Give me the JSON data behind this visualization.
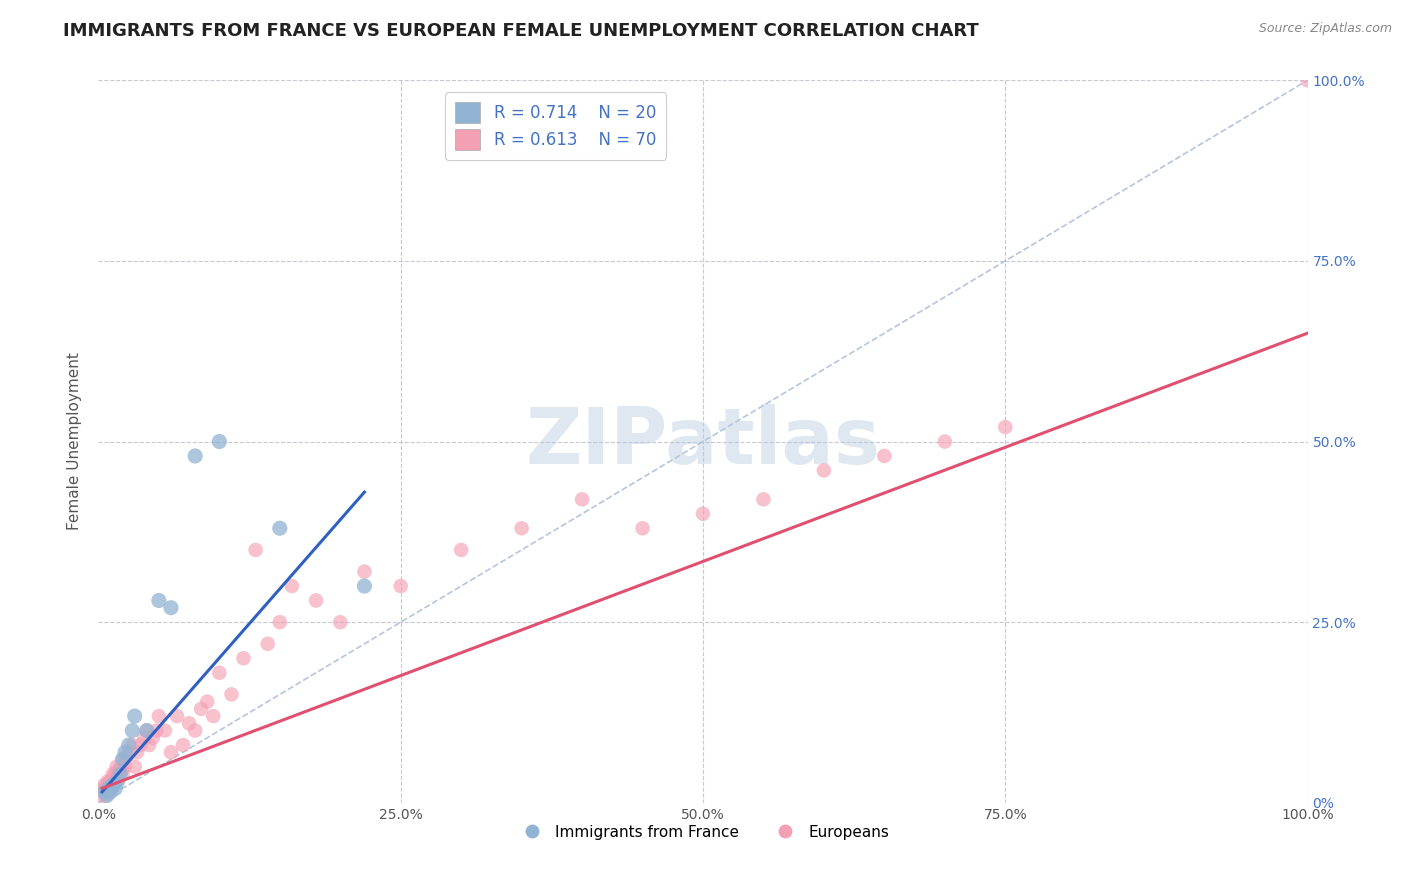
{
  "title": "IMMIGRANTS FROM FRANCE VS EUROPEAN FEMALE UNEMPLOYMENT CORRELATION CHART",
  "source": "Source: ZipAtlas.com",
  "xlabel": "",
  "ylabel": "Female Unemployment",
  "xlim": [
    0,
    1
  ],
  "ylim": [
    0,
    1
  ],
  "xtick_labels": [
    "0.0%",
    "25.0%",
    "50.0%",
    "75.0%",
    "100.0%"
  ],
  "ytick_labels_right": [
    "0%",
    "25.0%",
    "50.0%",
    "75.0%",
    "100.0%"
  ],
  "legend_r1": "R = 0.714",
  "legend_n1": "N = 20",
  "legend_r2": "R = 0.613",
  "legend_n2": "N = 70",
  "blue_color": "#92b4d4",
  "pink_color": "#f4a0b4",
  "blue_line_color": "#3060c0",
  "pink_line_color": "#e05070",
  "diag_color": "#a0b8d8",
  "background_color": "#ffffff",
  "grid_color": "#c8c8d8",
  "title_fontsize": 13,
  "axis_label_fontsize": 11,
  "legend_fontsize": 12,
  "watermark_text": "ZIPatlas",
  "watermark_color": "#b8cce0",
  "watermark_alpha": 0.45,
  "blue_scatter_x": [
    0.005,
    0.007,
    0.008,
    0.01,
    0.012,
    0.014,
    0.016,
    0.018,
    0.02,
    0.022,
    0.025,
    0.028,
    0.03,
    0.04,
    0.05,
    0.06,
    0.08,
    0.1,
    0.15,
    0.22
  ],
  "blue_scatter_y": [
    0.015,
    0.01,
    0.02,
    0.015,
    0.025,
    0.02,
    0.03,
    0.04,
    0.06,
    0.07,
    0.08,
    0.1,
    0.12,
    0.1,
    0.28,
    0.27,
    0.48,
    0.5,
    0.38,
    0.3
  ],
  "pink_scatter_x": [
    0.003,
    0.004,
    0.005,
    0.005,
    0.006,
    0.006,
    0.007,
    0.007,
    0.008,
    0.008,
    0.009,
    0.01,
    0.01,
    0.011,
    0.012,
    0.013,
    0.013,
    0.014,
    0.015,
    0.015,
    0.016,
    0.017,
    0.018,
    0.019,
    0.02,
    0.02,
    0.022,
    0.023,
    0.025,
    0.028,
    0.03,
    0.032,
    0.035,
    0.038,
    0.04,
    0.042,
    0.045,
    0.048,
    0.05,
    0.055,
    0.06,
    0.065,
    0.07,
    0.075,
    0.08,
    0.085,
    0.09,
    0.095,
    0.1,
    0.11,
    0.12,
    0.13,
    0.14,
    0.15,
    0.16,
    0.18,
    0.2,
    0.22,
    0.25,
    0.3,
    0.35,
    0.4,
    0.45,
    0.5,
    0.55,
    0.6,
    0.65,
    0.7,
    0.75,
    1.0
  ],
  "pink_scatter_y": [
    0.01,
    0.02,
    0.015,
    0.025,
    0.01,
    0.02,
    0.015,
    0.025,
    0.02,
    0.03,
    0.025,
    0.02,
    0.03,
    0.03,
    0.04,
    0.025,
    0.035,
    0.04,
    0.03,
    0.05,
    0.04,
    0.045,
    0.05,
    0.045,
    0.04,
    0.06,
    0.05,
    0.065,
    0.07,
    0.08,
    0.05,
    0.07,
    0.08,
    0.09,
    0.1,
    0.08,
    0.09,
    0.1,
    0.12,
    0.1,
    0.07,
    0.12,
    0.08,
    0.11,
    0.1,
    0.13,
    0.14,
    0.12,
    0.18,
    0.15,
    0.2,
    0.35,
    0.22,
    0.25,
    0.3,
    0.28,
    0.25,
    0.32,
    0.3,
    0.35,
    0.38,
    0.42,
    0.38,
    0.4,
    0.42,
    0.46,
    0.48,
    0.5,
    0.52,
    1.0
  ],
  "blue_trend_x": [
    0.003,
    0.22
  ],
  "blue_trend_y": [
    0.015,
    0.43
  ],
  "pink_trend_x": [
    0.003,
    1.0
  ],
  "pink_trend_y": [
    0.02,
    0.65
  ]
}
